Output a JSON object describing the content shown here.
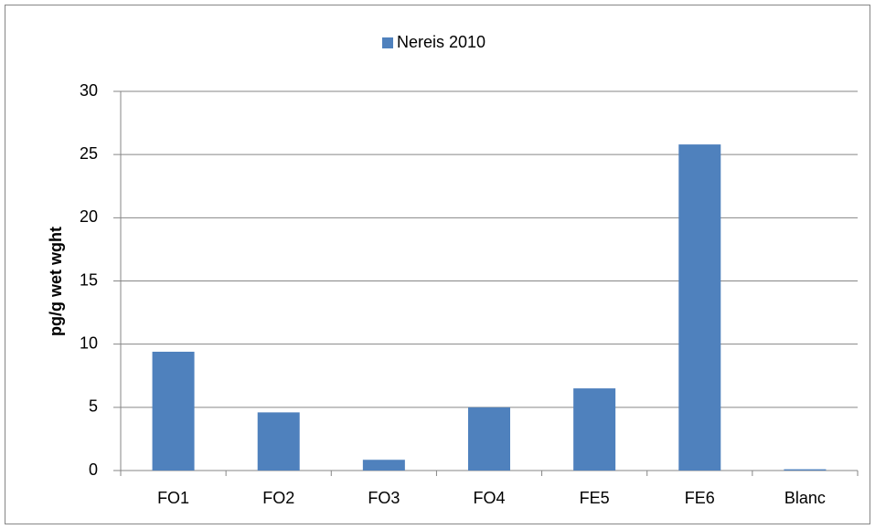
{
  "chart_data": {
    "type": "bar",
    "legend": "Nereis 2010",
    "y_label": "pg/g wet wght",
    "series": [
      {
        "name": "Nereis 2010",
        "color": "#4f81bd",
        "values": [
          9.4,
          4.6,
          0.85,
          5.0,
          6.5,
          25.8,
          0.1
        ]
      }
    ],
    "categories": [
      "FO1",
      "FO2",
      "FO3",
      "FO4",
      "FE5",
      "FE6",
      "Blanc"
    ],
    "ylim": [
      0,
      30
    ],
    "yticks": [
      0,
      5,
      10,
      15,
      20,
      25,
      30
    ],
    "grid": true,
    "legend_position": "top"
  }
}
